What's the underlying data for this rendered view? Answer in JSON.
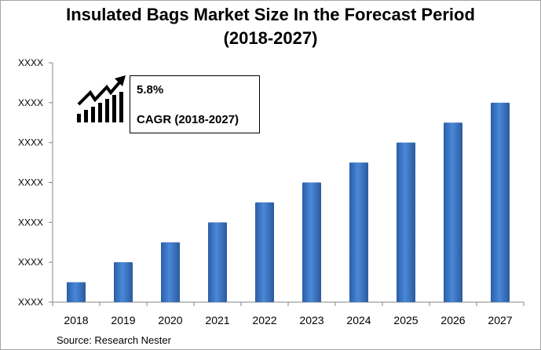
{
  "chart_data": {
    "type": "bar",
    "title": "Insulated Bags Market Size In the Forecast Period",
    "subtitle": "(2018-2027)",
    "categories": [
      "2018",
      "2019",
      "2020",
      "2021",
      "2022",
      "2023",
      "2024",
      "2025",
      "2026",
      "2027"
    ],
    "values": [
      0.5,
      1.0,
      1.5,
      2.0,
      2.5,
      3.0,
      3.5,
      4.0,
      4.5,
      5.0
    ],
    "ylim": [
      0,
      6
    ],
    "yticks": [
      "XXXX",
      "XXXX",
      "XXXX",
      "XXXX",
      "XXXX",
      "XXXX",
      "XXXX"
    ],
    "xlabel": "",
    "ylabel": "",
    "grid": false,
    "bar_color": "#3a73c2",
    "annotation": {
      "value": "5.8%",
      "label": "CAGR (2018-2027)",
      "icon": "growth-chart-icon"
    }
  },
  "source": "Source: Research Nester"
}
